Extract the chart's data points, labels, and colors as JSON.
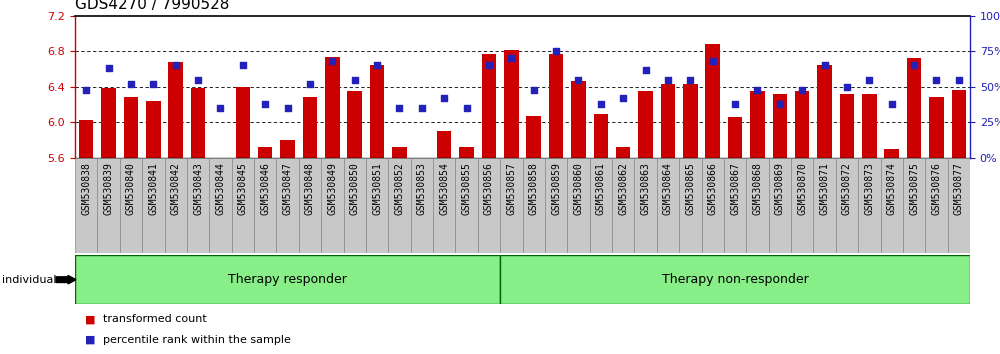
{
  "title": "GDS4270 / 7990528",
  "samples": [
    "GSM530838",
    "GSM530839",
    "GSM530840",
    "GSM530841",
    "GSM530842",
    "GSM530843",
    "GSM530844",
    "GSM530845",
    "GSM530846",
    "GSM530847",
    "GSM530848",
    "GSM530849",
    "GSM530850",
    "GSM530851",
    "GSM530852",
    "GSM530853",
    "GSM530854",
    "GSM530855",
    "GSM530856",
    "GSM530857",
    "GSM530858",
    "GSM530859",
    "GSM530860",
    "GSM530861",
    "GSM530862",
    "GSM530863",
    "GSM530864",
    "GSM530865",
    "GSM530866",
    "GSM530867",
    "GSM530868",
    "GSM530869",
    "GSM530870",
    "GSM530871",
    "GSM530872",
    "GSM530873",
    "GSM530874",
    "GSM530875",
    "GSM530876",
    "GSM530877"
  ],
  "bar_values": [
    6.02,
    6.39,
    6.28,
    6.24,
    6.68,
    6.38,
    5.58,
    6.4,
    5.72,
    5.8,
    6.28,
    6.74,
    6.35,
    6.65,
    5.72,
    5.6,
    5.9,
    5.72,
    6.77,
    6.82,
    6.07,
    6.77,
    6.47,
    6.09,
    5.72,
    6.35,
    6.43,
    6.43,
    6.88,
    6.06,
    6.35,
    6.32,
    6.35,
    6.65,
    6.32,
    6.32,
    5.7,
    6.73,
    6.28,
    6.36
  ],
  "percentile_values": [
    48,
    63,
    52,
    52,
    65,
    55,
    35,
    65,
    38,
    35,
    52,
    68,
    55,
    65,
    35,
    35,
    42,
    35,
    65,
    70,
    48,
    75,
    55,
    38,
    42,
    62,
    55,
    55,
    68,
    38,
    48,
    38,
    48,
    65,
    50,
    55,
    38,
    65,
    55,
    55
  ],
  "ylim_left": [
    5.6,
    7.2
  ],
  "ylim_right": [
    0,
    100
  ],
  "yticks_left": [
    5.6,
    6.0,
    6.4,
    6.8,
    7.2
  ],
  "yticks_right": [
    0,
    25,
    50,
    75,
    100
  ],
  "bar_color": "#CC0000",
  "dot_color": "#2222BB",
  "group1_label": "Therapy responder",
  "group2_label": "Therapy non-responder",
  "group1_count": 19,
  "group_bg_color": "#88EE88",
  "group_border_color": "#006600",
  "individual_label": "individual",
  "legend_bar_label": "transformed count",
  "legend_dot_label": "percentile rank within the sample",
  "title_fontsize": 11,
  "tick_fontsize": 7,
  "axis_color_left": "#CC0000",
  "axis_color_right": "#2222BB",
  "gridline_ticks": [
    6.0,
    6.4,
    6.8
  ],
  "tick_bg_color": "#C8C8C8",
  "tick_border_color": "#888888"
}
